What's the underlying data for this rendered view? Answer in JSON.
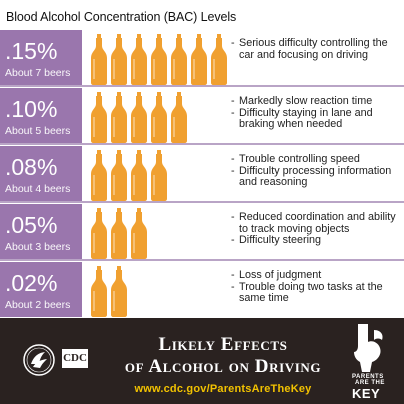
{
  "title": "Blood Alcohol Concentration (BAC) Levels",
  "levels": [
    {
      "pct": ".15%",
      "beers": "About 7 beers",
      "bottle_count": 7,
      "effects": [
        "Serious difficulty controlling the car and focusing on driving"
      ]
    },
    {
      "pct": ".10%",
      "beers": "About 5 beers",
      "bottle_count": 5,
      "effects": [
        "Markedly slow reaction time",
        "Difficulty staying in lane and braking when needed"
      ]
    },
    {
      "pct": ".08%",
      "beers": "About 4 beers",
      "bottle_count": 4,
      "effects": [
        "Trouble controlling speed",
        "Difficulty processing information and reasoning"
      ]
    },
    {
      "pct": ".05%",
      "beers": "About 3 beers",
      "bottle_count": 3,
      "effects": [
        "Reduced coordination and ability to track moving objects",
        "Difficulty steering"
      ]
    },
    {
      "pct": ".02%",
      "beers": "About 2 beers",
      "bottle_count": 2,
      "effects": [
        "Loss of judgment",
        "Trouble doing two tasks at the same time"
      ]
    }
  ],
  "footer": {
    "heading_line1": "Likely Effects",
    "heading_line2": "of Alcohol on Driving",
    "url": "www.cdc.gov/ParentsAreTheKey",
    "cdc_logo_text": "CDC",
    "pk_line1": "PARENTS",
    "pk_line2": "ARE THE",
    "pk_line3": "KEY"
  },
  "colors": {
    "level_panel": "#9a76ad",
    "divider": "#b9a4c6",
    "bottle": "#f0a030",
    "footer_bg": "#2a2220",
    "url": "#f2c200"
  }
}
